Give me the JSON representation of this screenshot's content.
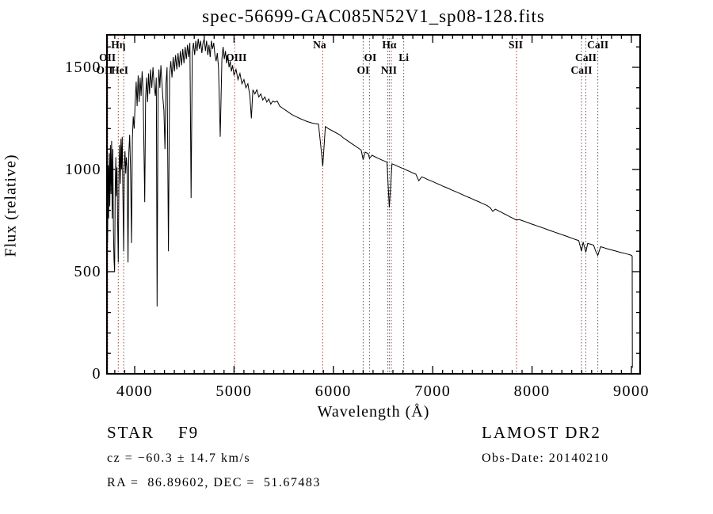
{
  "chart_data": {
    "type": "line",
    "title": "spec-56699-GAC085N52V1_sp08-128.fits",
    "xlabel": "Wavelength (Å)",
    "ylabel": "Flux (relative)",
    "xlim": [
      3721,
      9088
    ],
    "ylim": [
      0,
      1659
    ],
    "x_ticks_major": [
      4000,
      5000,
      6000,
      7000,
      8000,
      9000
    ],
    "x_minor_step": 100,
    "y_ticks_major": [
      0,
      500,
      1000,
      1500
    ],
    "y_minor_step": 100,
    "grid": "off",
    "legend": "none",
    "trace_color": "#000000",
    "marker_color": "#96463c",
    "frame_color": "#000000",
    "spectral_lines": [
      {
        "wavelength": 3726,
        "label": "OII",
        "row": 2,
        "dx": 0
      },
      {
        "wavelength": 3729,
        "label": "OII",
        "row": 3,
        "dx": -4
      },
      {
        "wavelength": 3835,
        "label": "Hη",
        "row": 1,
        "dx": 0
      },
      {
        "wavelength": 3889,
        "label": "HeI",
        "row": 3,
        "dx": -5
      },
      {
        "wavelength": 5007,
        "label": "OIII",
        "row": 2,
        "dx": 2
      },
      {
        "wavelength": 5893,
        "label": "Na",
        "row": 1,
        "dx": -4
      },
      {
        "wavelength": 6300,
        "label": "OI",
        "row": 3,
        "dx": 0
      },
      {
        "wavelength": 6364,
        "label": "OI",
        "row": 2,
        "dx": 1
      },
      {
        "wavelength": 6548,
        "label": "",
        "row": 0,
        "dx": 0
      },
      {
        "wavelength": 6563,
        "label": "Hα",
        "row": 1,
        "dx": 0
      },
      {
        "wavelength": 6583,
        "label": "NII",
        "row": 3,
        "dx": -3
      },
      {
        "wavelength": 6708,
        "label": "Li",
        "row": 2,
        "dx": 0
      },
      {
        "wavelength": 7844,
        "label": "SII",
        "row": 1,
        "dx": -1
      },
      {
        "wavelength": 8498,
        "label": "CaII",
        "row": 3,
        "dx": 0
      },
      {
        "wavelength": 8542,
        "label": "CaII",
        "row": 2,
        "dx": 0
      },
      {
        "wavelength": 8662,
        "label": "CaII",
        "row": 1,
        "dx": 0
      }
    ],
    "spectrum": [
      [
        3722,
        60
      ],
      [
        3724,
        940
      ],
      [
        3727,
        640
      ],
      [
        3733,
        1020
      ],
      [
        3738,
        760
      ],
      [
        3744,
        1080
      ],
      [
        3750,
        820
      ],
      [
        3756,
        1120
      ],
      [
        3762,
        880
      ],
      [
        3768,
        1140
      ],
      [
        3774,
        760
      ],
      [
        3780,
        1100
      ],
      [
        3786,
        700
      ],
      [
        3792,
        560
      ],
      [
        3798,
        500
      ],
      [
        3804,
        900
      ],
      [
        3810,
        1060
      ],
      [
        3816,
        870
      ],
      [
        3822,
        1010
      ],
      [
        3828,
        760
      ],
      [
        3835,
        545
      ],
      [
        3842,
        980
      ],
      [
        3848,
        1120
      ],
      [
        3856,
        930
      ],
      [
        3862,
        1150
      ],
      [
        3868,
        1000
      ],
      [
        3875,
        1160
      ],
      [
        3882,
        860
      ],
      [
        3889,
        600
      ],
      [
        3896,
        1010
      ],
      [
        3903,
        1090
      ],
      [
        3910,
        980
      ],
      [
        3917,
        1060
      ],
      [
        3924,
        1010
      ],
      [
        3933,
        545
      ],
      [
        3941,
        1080
      ],
      [
        3950,
        1170
      ],
      [
        3959,
        1000
      ],
      [
        3968,
        640
      ],
      [
        3977,
        1150
      ],
      [
        3986,
        1260
      ],
      [
        3995,
        1200
      ],
      [
        4005,
        1330
      ],
      [
        4015,
        1430
      ],
      [
        4025,
        1310
      ],
      [
        4035,
        1460
      ],
      [
        4045,
        1330
      ],
      [
        4055,
        1450
      ],
      [
        4065,
        1360
      ],
      [
        4075,
        1480
      ],
      [
        4085,
        1390
      ],
      [
        4101,
        840
      ],
      [
        4110,
        1350
      ],
      [
        4120,
        1450
      ],
      [
        4130,
        1330
      ],
      [
        4140,
        1470
      ],
      [
        4150,
        1370
      ],
      [
        4160,
        1490
      ],
      [
        4172,
        1400
      ],
      [
        4184,
        1500
      ],
      [
        4196,
        1410
      ],
      [
        4208,
        1360
      ],
      [
        4218,
        1450
      ],
      [
        4226,
        330
      ],
      [
        4235,
        1380
      ],
      [
        4244,
        1490
      ],
      [
        4254,
        1400
      ],
      [
        4264,
        1510
      ],
      [
        4274,
        1430
      ],
      [
        4284,
        1350
      ],
      [
        4294,
        1290
      ],
      [
        4305,
        1100
      ],
      [
        4315,
        1420
      ],
      [
        4326,
        1500
      ],
      [
        4340,
        600
      ],
      [
        4352,
        1460
      ],
      [
        4364,
        1530
      ],
      [
        4376,
        1450
      ],
      [
        4388,
        1550
      ],
      [
        4400,
        1480
      ],
      [
        4412,
        1560
      ],
      [
        4424,
        1490
      ],
      [
        4436,
        1570
      ],
      [
        4448,
        1500
      ],
      [
        4460,
        1580
      ],
      [
        4472,
        1510
      ],
      [
        4484,
        1590
      ],
      [
        4496,
        1520
      ],
      [
        4508,
        1600
      ],
      [
        4520,
        1540
      ],
      [
        4532,
        1610
      ],
      [
        4544,
        1550
      ],
      [
        4556,
        1620
      ],
      [
        4568,
        860
      ],
      [
        4580,
        1570
      ],
      [
        4592,
        1620
      ],
      [
        4604,
        1560
      ],
      [
        4616,
        1630
      ],
      [
        4628,
        1580
      ],
      [
        4640,
        1640
      ],
      [
        4652,
        1590
      ],
      [
        4664,
        1630
      ],
      [
        4676,
        1570
      ],
      [
        4688,
        1620
      ],
      [
        4700,
        1640
      ],
      [
        4712,
        1580
      ],
      [
        4724,
        1630
      ],
      [
        4736,
        1560
      ],
      [
        4748,
        1610
      ],
      [
        4760,
        1550
      ],
      [
        4772,
        1630
      ],
      [
        4784,
        1590
      ],
      [
        4796,
        1620
      ],
      [
        4808,
        1560
      ],
      [
        4820,
        1530
      ],
      [
        4832,
        1570
      ],
      [
        4844,
        1500
      ],
      [
        4861,
        1160
      ],
      [
        4878,
        1540
      ],
      [
        4890,
        1600
      ],
      [
        4902,
        1540
      ],
      [
        4914,
        1580
      ],
      [
        4926,
        1520
      ],
      [
        4938,
        1560
      ],
      [
        4950,
        1500
      ],
      [
        4962,
        1530
      ],
      [
        4974,
        1480
      ],
      [
        4986,
        1510
      ],
      [
        5000,
        1460
      ],
      [
        5020,
        1490
      ],
      [
        5040,
        1440
      ],
      [
        5060,
        1470
      ],
      [
        5080,
        1420
      ],
      [
        5100,
        1440
      ],
      [
        5120,
        1400
      ],
      [
        5140,
        1420
      ],
      [
        5160,
        1360
      ],
      [
        5175,
        1250
      ],
      [
        5190,
        1390
      ],
      [
        5210,
        1370
      ],
      [
        5230,
        1390
      ],
      [
        5250,
        1355
      ],
      [
        5270,
        1370
      ],
      [
        5290,
        1340
      ],
      [
        5310,
        1355
      ],
      [
        5330,
        1330
      ],
      [
        5350,
        1345
      ],
      [
        5370,
        1320
      ],
      [
        5390,
        1335
      ],
      [
        5410,
        1330
      ],
      [
        5435,
        1335
      ],
      [
        5460,
        1310
      ],
      [
        5490,
        1300
      ],
      [
        5520,
        1290
      ],
      [
        5550,
        1280
      ],
      [
        5580,
        1270
      ],
      [
        5610,
        1262
      ],
      [
        5640,
        1255
      ],
      [
        5670,
        1248
      ],
      [
        5700,
        1242
      ],
      [
        5730,
        1236
      ],
      [
        5760,
        1231
      ],
      [
        5790,
        1227
      ],
      [
        5820,
        1224
      ],
      [
        5850,
        1222
      ],
      [
        5893,
        1015
      ],
      [
        5920,
        1210
      ],
      [
        5950,
        1200
      ],
      [
        5980,
        1192
      ],
      [
        6010,
        1184
      ],
      [
        6040,
        1176
      ],
      [
        6070,
        1168
      ],
      [
        6100,
        1155
      ],
      [
        6130,
        1145
      ],
      [
        6160,
        1135
      ],
      [
        6190,
        1125
      ],
      [
        6220,
        1115
      ],
      [
        6250,
        1105
      ],
      [
        6280,
        1095
      ],
      [
        6300,
        1048
      ],
      [
        6320,
        1085
      ],
      [
        6350,
        1078
      ],
      [
        6364,
        1055
      ],
      [
        6390,
        1070
      ],
      [
        6420,
        1062
      ],
      [
        6450,
        1055
      ],
      [
        6480,
        1048
      ],
      [
        6510,
        1042
      ],
      [
        6540,
        1036
      ],
      [
        6563,
        814
      ],
      [
        6590,
        1028
      ],
      [
        6620,
        1022
      ],
      [
        6650,
        1015
      ],
      [
        6680,
        1009
      ],
      [
        6710,
        1003
      ],
      [
        6740,
        996
      ],
      [
        6770,
        990
      ],
      [
        6800,
        983
      ],
      [
        6830,
        977
      ],
      [
        6860,
        945
      ],
      [
        6890,
        964
      ],
      [
        6920,
        958
      ],
      [
        6950,
        951
      ],
      [
        6980,
        945
      ],
      [
        7010,
        939
      ],
      [
        7040,
        932
      ],
      [
        7070,
        926
      ],
      [
        7100,
        919
      ],
      [
        7130,
        913
      ],
      [
        7160,
        907
      ],
      [
        7190,
        900
      ],
      [
        7220,
        894
      ],
      [
        7250,
        888
      ],
      [
        7280,
        881
      ],
      [
        7310,
        875
      ],
      [
        7340,
        868
      ],
      [
        7370,
        862
      ],
      [
        7400,
        856
      ],
      [
        7430,
        849
      ],
      [
        7460,
        843
      ],
      [
        7490,
        836
      ],
      [
        7520,
        830
      ],
      [
        7550,
        823
      ],
      [
        7580,
        812
      ],
      [
        7605,
        795
      ],
      [
        7630,
        806
      ],
      [
        7660,
        798
      ],
      [
        7690,
        791
      ],
      [
        7720,
        783
      ],
      [
        7750,
        776
      ],
      [
        7780,
        768
      ],
      [
        7810,
        761
      ],
      [
        7844,
        752
      ],
      [
        7870,
        755
      ],
      [
        7900,
        750
      ],
      [
        7930,
        745
      ],
      [
        7960,
        740
      ],
      [
        7990,
        734
      ],
      [
        8020,
        729
      ],
      [
        8050,
        724
      ],
      [
        8080,
        719
      ],
      [
        8110,
        714
      ],
      [
        8140,
        709
      ],
      [
        8170,
        703
      ],
      [
        8200,
        698
      ],
      [
        8230,
        693
      ],
      [
        8260,
        688
      ],
      [
        8290,
        683
      ],
      [
        8320,
        678
      ],
      [
        8350,
        673
      ],
      [
        8380,
        667
      ],
      [
        8410,
        662
      ],
      [
        8440,
        657
      ],
      [
        8470,
        652
      ],
      [
        8498,
        600
      ],
      [
        8515,
        645
      ],
      [
        8542,
        595
      ],
      [
        8560,
        638
      ],
      [
        8590,
        634
      ],
      [
        8620,
        630
      ],
      [
        8662,
        580
      ],
      [
        8690,
        622
      ],
      [
        8720,
        618
      ],
      [
        8750,
        613
      ],
      [
        8780,
        609
      ],
      [
        8810,
        605
      ],
      [
        8840,
        601
      ],
      [
        8870,
        597
      ],
      [
        8900,
        593
      ],
      [
        8930,
        590
      ],
      [
        8960,
        586
      ],
      [
        8990,
        582
      ],
      [
        9005,
        578
      ],
      [
        9008,
        575
      ],
      [
        9010,
        30
      ]
    ]
  },
  "annotations": {
    "class_label": "STAR",
    "subclass": "F9",
    "cz_line": "cz = −60.3 ± 14.7 km/s",
    "radec_line": "RA =  86.89602, DEC =  51.67483",
    "survey": "LAMOST DR2",
    "obsdate_line": "Obs-Date: 20140210"
  }
}
